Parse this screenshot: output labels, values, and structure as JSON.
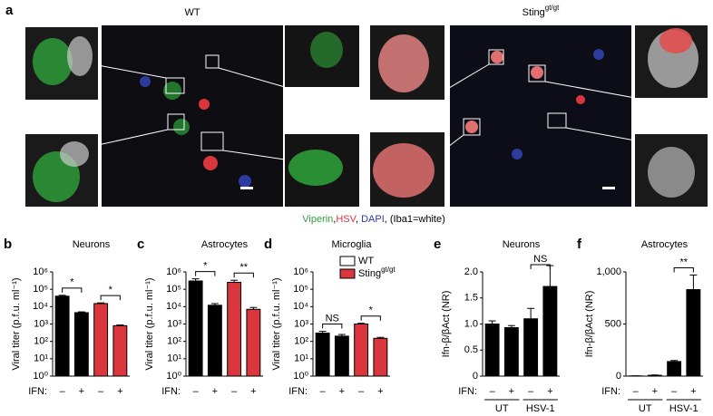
{
  "panel_a": {
    "panel": "a",
    "left_label": "WT",
    "right_label": "Sting",
    "right_label_sup": "gt/gt",
    "caption": [
      {
        "text": "Viperin",
        "color": "#2e9e3a"
      },
      {
        "text": ",",
        "color": "#000000"
      },
      {
        "text": "HSV",
        "color": "#d9363e"
      },
      {
        "text": ", ",
        "color": "#000000"
      },
      {
        "text": "DAPI",
        "color": "#2d3a9e"
      },
      {
        "text": ", (Iba1=white)",
        "color": "#000000"
      }
    ]
  },
  "chart_data": [
    {
      "type": "bar",
      "panel": "b",
      "title": "Neurons",
      "ylabel": "Viral titer (p.f.u. ml⁻¹)",
      "log": true,
      "ylim": [
        1,
        1000000
      ],
      "yticks": [
        {
          "value": 1,
          "label": "10⁰"
        },
        {
          "value": 10,
          "label": "10¹"
        },
        {
          "value": 100,
          "label": "10²"
        },
        {
          "value": 1000,
          "label": "10³"
        },
        {
          "value": 10000,
          "label": "10⁴"
        },
        {
          "value": 100000,
          "label": "10⁵"
        },
        {
          "value": 1000000,
          "label": "10⁶"
        }
      ],
      "xlabel": "IFN:",
      "categories": [
        "–",
        "+",
        "–",
        "+"
      ],
      "values": [
        40000,
        4500,
        15000,
        800
      ],
      "errors": [
        5000,
        500,
        1500,
        80
      ],
      "colors": [
        "#000000",
        "#000000",
        "#d9363e",
        "#d9363e"
      ],
      "brackets": [
        {
          "text": "*",
          "pair": [
            0,
            1
          ]
        },
        {
          "text": "*",
          "pair": [
            2,
            3
          ]
        }
      ]
    },
    {
      "type": "bar",
      "panel": "c",
      "title": "Astrocytes",
      "ylabel": "Viral titer (p.f.u. ml⁻¹)",
      "log": true,
      "ylim": [
        1,
        1000000
      ],
      "yticks": [
        {
          "value": 1,
          "label": "10⁰"
        },
        {
          "value": 10,
          "label": "10¹"
        },
        {
          "value": 100,
          "label": "10²"
        },
        {
          "value": 1000,
          "label": "10³"
        },
        {
          "value": 10000,
          "label": "10⁴"
        },
        {
          "value": 100000,
          "label": "10⁵"
        },
        {
          "value": 1000000,
          "label": "10⁶"
        }
      ],
      "xlabel": "IFN:",
      "categories": [
        "–",
        "+",
        "–",
        "+"
      ],
      "values": [
        300000,
        12000,
        250000,
        7000
      ],
      "errors": [
        100000,
        3000,
        80000,
        2000
      ],
      "colors": [
        "#000000",
        "#000000",
        "#d9363e",
        "#d9363e"
      ],
      "brackets": [
        {
          "text": "*",
          "pair": [
            0,
            1
          ]
        },
        {
          "text": "**",
          "pair": [
            2,
            3
          ]
        }
      ]
    },
    {
      "type": "bar",
      "panel": "d",
      "title": "Microglia",
      "ylabel": "Viral titer (p.f.u. ml⁻¹)",
      "log": true,
      "ylim": [
        1,
        1000000
      ],
      "yticks": [
        {
          "value": 1,
          "label": "10⁰"
        },
        {
          "value": 10,
          "label": "10¹"
        },
        {
          "value": 100,
          "label": "10²"
        },
        {
          "value": 1000,
          "label": "10³"
        },
        {
          "value": 10000,
          "label": "10⁴"
        },
        {
          "value": 100000,
          "label": "10⁵"
        },
        {
          "value": 1000000,
          "label": "10⁶"
        }
      ],
      "xlabel": "IFN:",
      "categories": [
        "–",
        "+",
        "–",
        "+"
      ],
      "values": [
        300,
        200,
        1000,
        150
      ],
      "errors": [
        80,
        50,
        100,
        20
      ],
      "colors": [
        "#000000",
        "#000000",
        "#d9363e",
        "#d9363e"
      ],
      "brackets": [
        {
          "text": "NS",
          "pair": [
            0,
            1
          ]
        },
        {
          "text": "*",
          "pair": [
            2,
            3
          ]
        }
      ],
      "legend": [
        {
          "name": "WT",
          "color": "#ffffff"
        },
        {
          "name": "Sting",
          "sup": "gt/gt",
          "color": "#d9363e"
        }
      ]
    },
    {
      "type": "bar",
      "panel": "e",
      "title": "Neurons",
      "ylabel": "Ifn-β/βAct (NR)",
      "log": false,
      "ylim": [
        0,
        2
      ],
      "yticks": [
        0,
        0.5,
        {
          "value": 1,
          "label": "1.0"
        },
        1.5,
        {
          "value": 2,
          "label": "2.0"
        }
      ],
      "xlabel": "IFN:",
      "categories": [
        "–",
        "+",
        "–",
        "+"
      ],
      "values": [
        1.0,
        0.93,
        1.1,
        1.72
      ],
      "errors": [
        0.06,
        0.04,
        0.2,
        0.4
      ],
      "colors": [
        "#000000",
        "#000000",
        "#000000",
        "#000000"
      ],
      "brackets": [
        {
          "text": "NS",
          "pair": [
            2,
            3
          ]
        }
      ],
      "groups": [
        "UT",
        "HSV-1"
      ]
    },
    {
      "type": "bar",
      "panel": "f",
      "title": "Astrocytes",
      "ylabel": "Ifn-β/βAct (NR)",
      "log": false,
      "ylim": [
        0,
        1000
      ],
      "yticks": [
        0,
        500,
        {
          "value": 1000,
          "label": "1,000"
        }
      ],
      "xlabel": "IFN:",
      "categories": [
        "–",
        "+",
        "–",
        "+"
      ],
      "values": [
        2,
        8,
        140,
        830
      ],
      "errors": [
        1,
        3,
        10,
        140
      ],
      "colors": [
        "#000000",
        "#000000",
        "#000000",
        "#000000"
      ],
      "brackets": [
        {
          "text": "**",
          "pair": [
            2,
            3
          ]
        }
      ],
      "groups": [
        "UT",
        "HSV-1"
      ]
    }
  ]
}
